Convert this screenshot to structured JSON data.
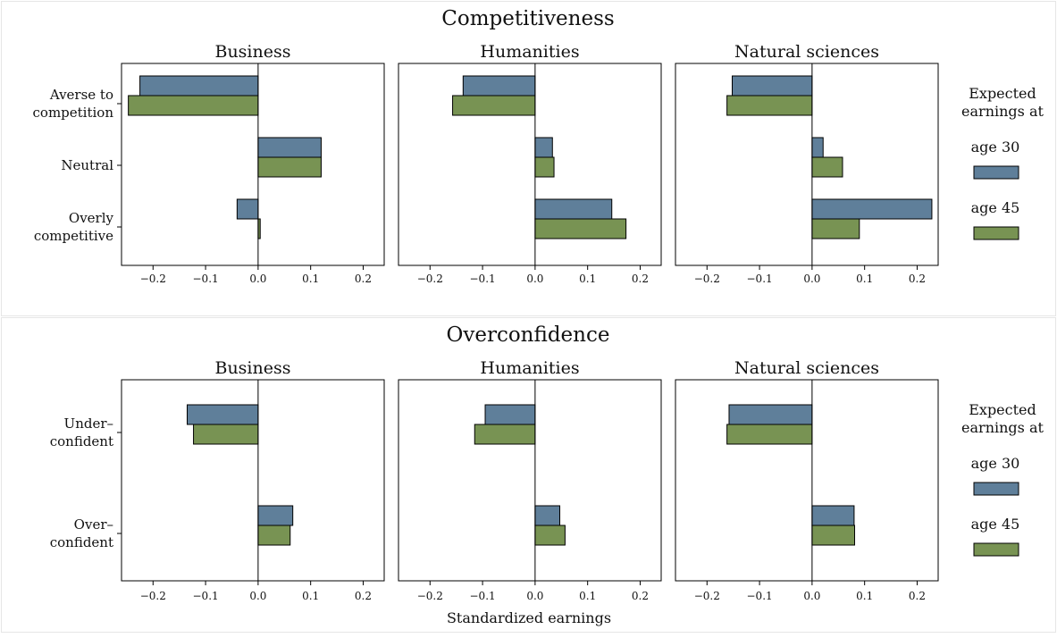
{
  "colors": {
    "age30": "#5f7f9a",
    "age45": "#789353"
  },
  "x_label": "Standardized earnings",
  "legend": {
    "title": [
      "Expected",
      "earnings at"
    ],
    "items": [
      "age 30",
      "age 45"
    ]
  },
  "ticks": [
    "−0.2",
    "−0.1",
    "0.0",
    "0.1",
    "0.2"
  ],
  "chart_data": [
    {
      "type": "bar",
      "orientation": "horizontal",
      "title": "Competitiveness",
      "xlabel": "Standardized earnings",
      "xlim": [
        -0.26,
        0.24
      ],
      "categories": [
        [
          "Averse to",
          "competition"
        ],
        [
          "Neutral"
        ],
        [
          "Overly",
          "competitive"
        ]
      ],
      "panels": [
        {
          "title": "Business",
          "series": [
            {
              "name": "age 30",
              "values": [
                -0.225,
                0.12,
                -0.04
              ]
            },
            {
              "name": "age 45",
              "values": [
                -0.247,
                0.12,
                0.004
              ]
            }
          ]
        },
        {
          "title": "Humanities",
          "series": [
            {
              "name": "age 30",
              "values": [
                -0.137,
                0.033,
                0.146
              ]
            },
            {
              "name": "age 45",
              "values": [
                -0.157,
                0.036,
                0.173
              ]
            }
          ]
        },
        {
          "title": "Natural sciences",
          "series": [
            {
              "name": "age 30",
              "values": [
                -0.152,
                0.021,
                0.228
              ]
            },
            {
              "name": "age 45",
              "values": [
                -0.162,
                0.058,
                0.09
              ]
            }
          ]
        }
      ]
    },
    {
      "type": "bar",
      "orientation": "horizontal",
      "title": "Overconfidence",
      "xlabel": "Standardized earnings",
      "xlim": [
        -0.26,
        0.24
      ],
      "categories": [
        [
          "Under–",
          "confident"
        ],
        [
          "Over–",
          "confident"
        ]
      ],
      "panels": [
        {
          "title": "Business",
          "series": [
            {
              "name": "age 30",
              "values": [
                -0.135,
                0.066
              ]
            },
            {
              "name": "age 45",
              "values": [
                -0.123,
                0.061
              ]
            }
          ]
        },
        {
          "title": "Humanities",
          "series": [
            {
              "name": "age 30",
              "values": [
                -0.095,
                0.047
              ]
            },
            {
              "name": "age 45",
              "values": [
                -0.115,
                0.057
              ]
            }
          ]
        },
        {
          "title": "Natural sciences",
          "series": [
            {
              "name": "age 30",
              "values": [
                -0.158,
                0.08
              ]
            },
            {
              "name": "age 45",
              "values": [
                -0.162,
                0.081
              ]
            }
          ]
        }
      ]
    }
  ]
}
